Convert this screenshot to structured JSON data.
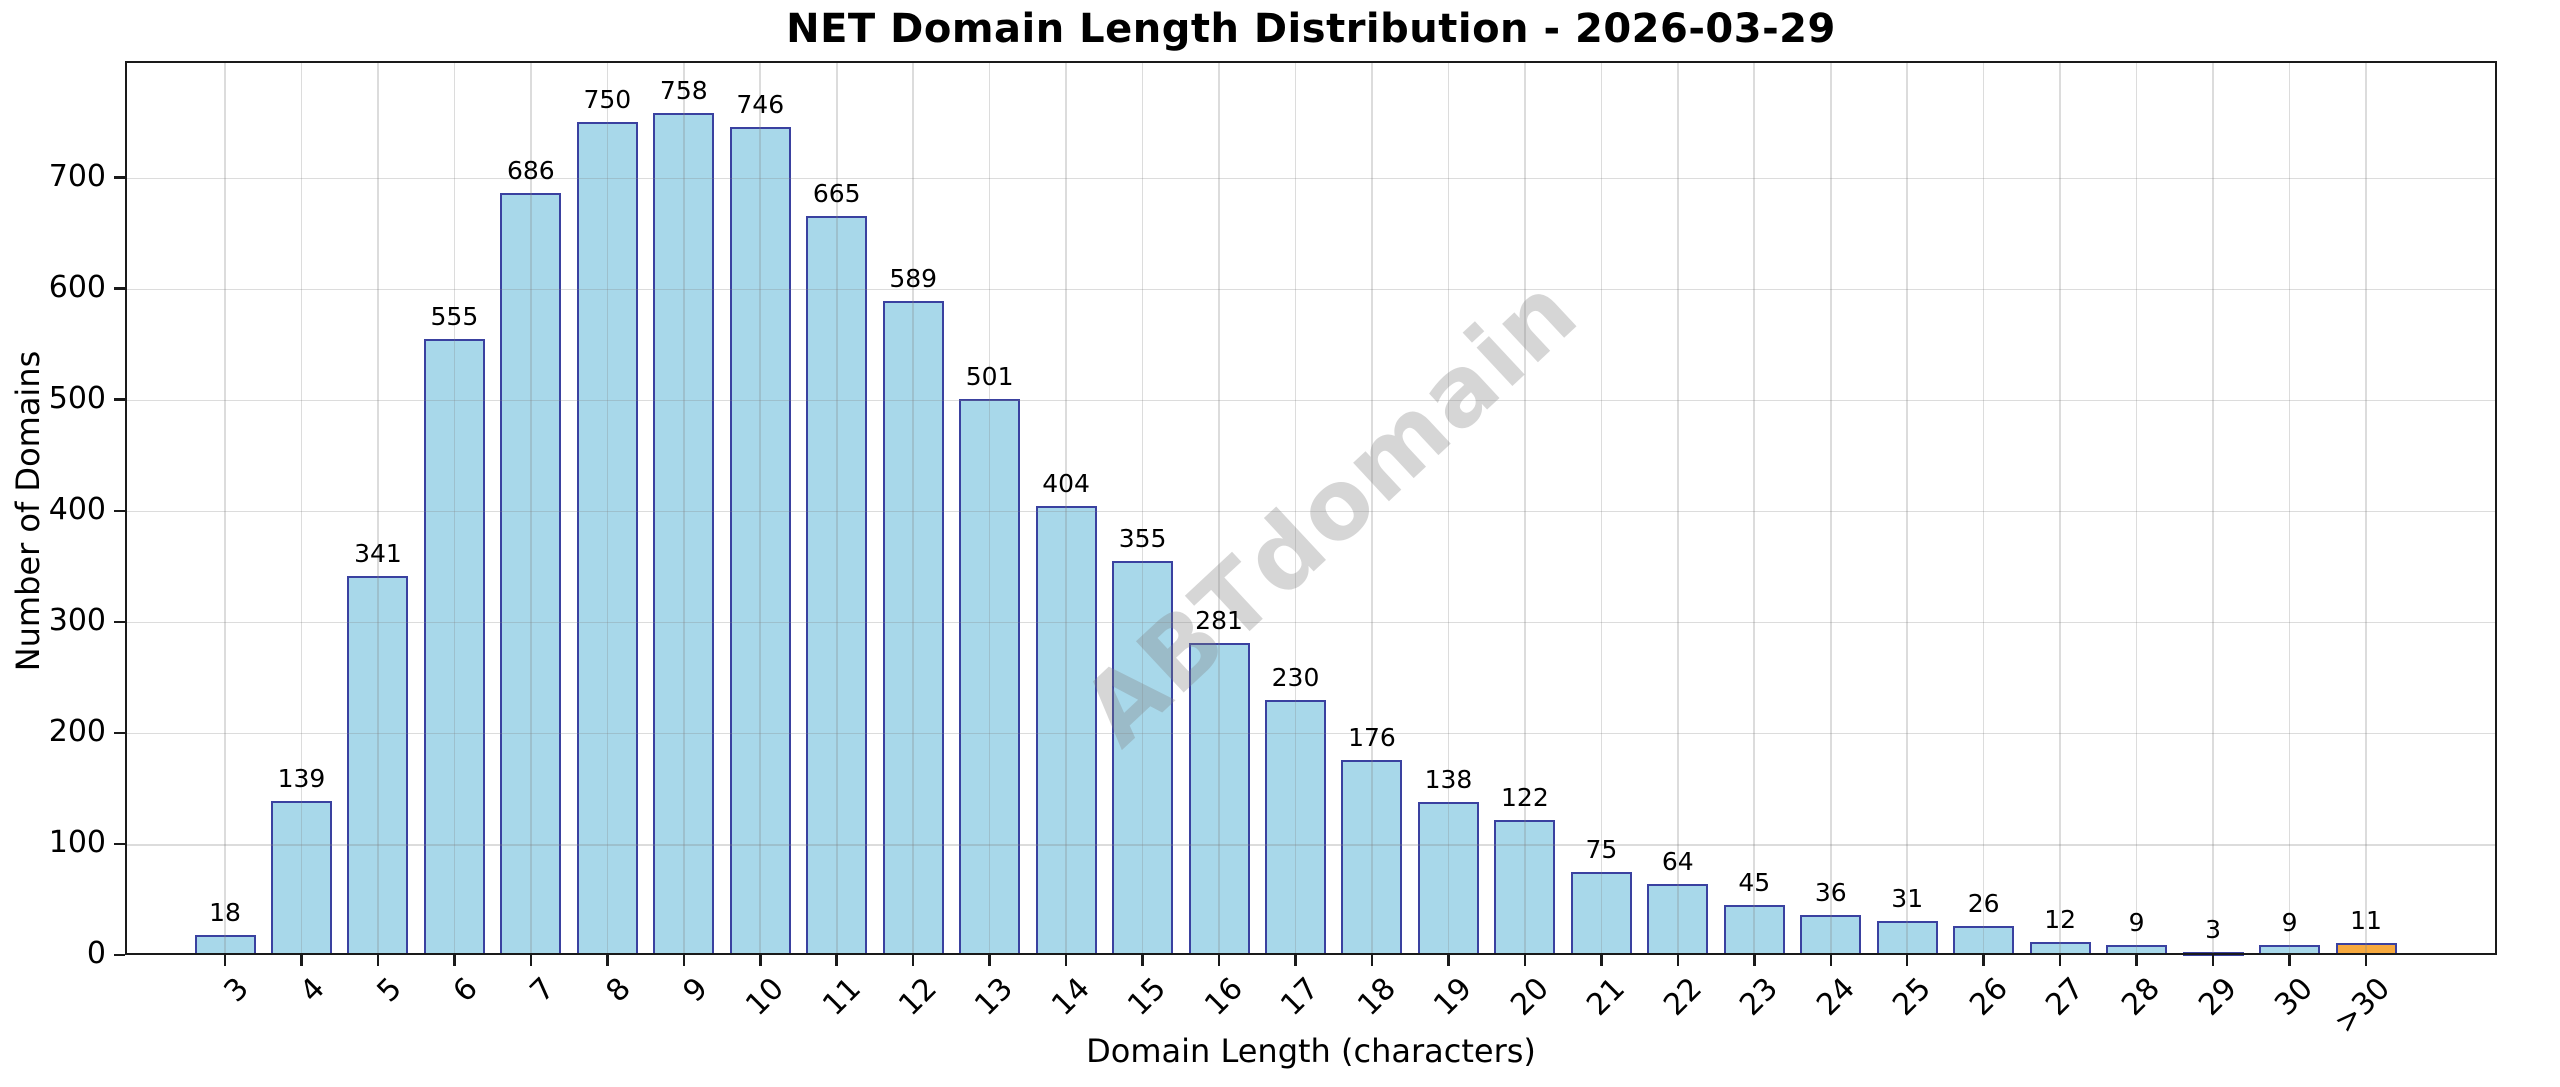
{
  "chart_data": {
    "type": "bar",
    "title": "NET Domain Length Distribution - 2026-03-29",
    "xlabel": "Domain Length (characters)",
    "ylabel": "Number of Domains",
    "watermark": "ABTdomain",
    "categories": [
      "3",
      "4",
      "5",
      "6",
      "7",
      "8",
      "9",
      "10",
      "11",
      "12",
      "13",
      "14",
      "15",
      "16",
      "17",
      "18",
      "19",
      "20",
      "21",
      "22",
      "23",
      "24",
      "25",
      "26",
      "27",
      "28",
      "29",
      "30",
      ">30"
    ],
    "values": [
      18,
      139,
      341,
      555,
      686,
      750,
      758,
      746,
      665,
      589,
      501,
      404,
      355,
      281,
      230,
      176,
      138,
      122,
      75,
      64,
      45,
      36,
      31,
      26,
      12,
      9,
      3,
      9,
      11
    ],
    "yticks": [
      0,
      100,
      200,
      300,
      400,
      500,
      600,
      700
    ],
    "ylim": [
      0,
      805
    ],
    "grid": true,
    "legend": null,
    "bar_color": "#a8d8ea",
    "bar_edge_color": "#3a41a0",
    "highlight_last_color": "#f7a93e",
    "highlight_index": 28,
    "value_labels_shown": true
  }
}
